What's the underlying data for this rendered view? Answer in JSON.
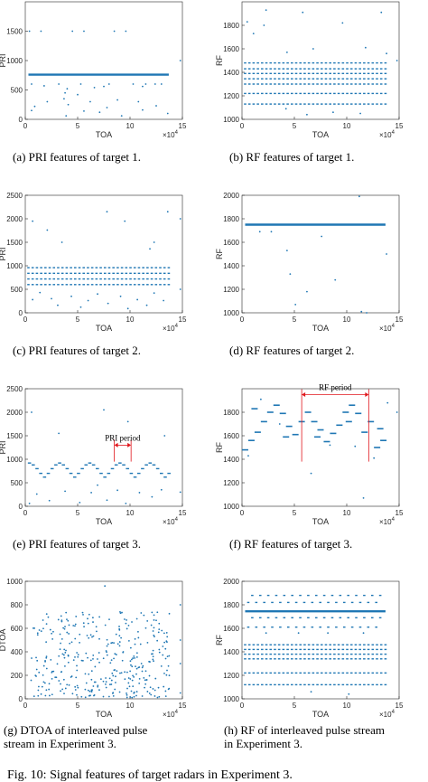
{
  "figure_caption": "Fig. 10: Signal features of target radars in Experiment 3.",
  "colors": {
    "points": "#1f77b4",
    "axes": "#262626",
    "annotation": "#e0151b"
  },
  "panels": [
    {
      "caption": [
        "(a) PRI features of target 1."
      ]
    },
    {
      "caption": [
        "(b) RF features of target 1."
      ]
    },
    {
      "caption": [
        "(c) PRI features of target 2."
      ]
    },
    {
      "caption": [
        "(d) RF features of target 2."
      ]
    },
    {
      "caption": [
        "(e) PRI features of target 3."
      ],
      "annotation": "PRI period"
    },
    {
      "caption": [
        "(f) RF features of target 3."
      ],
      "annotation": "RF period"
    },
    {
      "caption": [
        "(g) DTOA of interleaved pulse",
        "stream in Experiment 3."
      ]
    },
    {
      "caption": [
        "(h) RF of interleaved pulse stream",
        "in Experiment 3."
      ]
    }
  ],
  "chart_data": [
    {
      "type": "scatter",
      "xlabel": "TOA",
      "ylabel": "PRI",
      "x_exponent": "×10^4",
      "xlim": [
        0,
        15
      ],
      "ylim": [
        0,
        2000
      ],
      "yticks": [
        0,
        500,
        1000,
        1500
      ],
      "xticks": [
        0,
        5,
        10,
        15
      ],
      "series": [
        {
          "dense_band": {
            "x": [
              0.3,
              13.7
            ],
            "y": 760
          },
          "points": [
            [
              0.4,
              1500
            ],
            [
              1.5,
              1500
            ],
            [
              4.5,
              1500
            ],
            [
              5.6,
              1500
            ],
            [
              8.5,
              1500
            ],
            [
              9.6,
              1500
            ],
            [
              0.6,
              150
            ],
            [
              0.9,
              220
            ],
            [
              2.1,
              300
            ],
            [
              3.7,
              350
            ],
            [
              3.9,
              60
            ],
            [
              4.1,
              250
            ],
            [
              5.0,
              420
            ],
            [
              5.6,
              140
            ],
            [
              6.2,
              300
            ],
            [
              7.1,
              120
            ],
            [
              7.8,
              200
            ],
            [
              8.8,
              330
            ],
            [
              9.2,
              60
            ],
            [
              10.8,
              300
            ],
            [
              11.2,
              160
            ],
            [
              12.5,
              230
            ],
            [
              13.6,
              100
            ],
            [
              14.8,
              1000
            ],
            [
              0.6,
              600
            ],
            [
              1.8,
              570
            ],
            [
              3.2,
              600
            ],
            [
              3.8,
              450
            ],
            [
              4.0,
              520
            ],
            [
              5.3,
              600
            ],
            [
              6.6,
              540
            ],
            [
              7.5,
              560
            ],
            [
              8.0,
              600
            ],
            [
              10.3,
              600
            ],
            [
              11.2,
              560
            ],
            [
              11.5,
              600
            ],
            [
              12.4,
              600
            ],
            [
              13.0,
              600
            ]
          ]
        }
      ]
    },
    {
      "type": "scatter",
      "xlabel": "TOA",
      "ylabel": "RF",
      "x_exponent": "×10^4",
      "xlim": [
        0,
        15
      ],
      "ylim": [
        1000,
        2000
      ],
      "yticks": [
        1000,
        1200,
        1400,
        1600,
        1800
      ],
      "xticks": [
        0,
        5,
        10,
        15
      ],
      "series": [
        {
          "dash_rows": [
            {
              "y": 1480,
              "x": [
                0.3,
                13.7
              ],
              "dy": 0
            },
            {
              "y": 1430,
              "x": [
                0.3,
                13.7
              ],
              "dy": 0
            },
            {
              "y": 1390,
              "x": [
                0.3,
                13.7
              ],
              "dy": 0
            },
            {
              "y": 1345,
              "x": [
                0.3,
                13.7
              ],
              "dy": 0
            },
            {
              "y": 1300,
              "x": [
                0.3,
                13.7
              ],
              "dy": 0
            },
            {
              "y": 1220,
              "x": [
                0.3,
                13.7
              ],
              "dy": 0
            },
            {
              "y": 1130,
              "x": [
                0.3,
                13.7
              ],
              "dy": 0
            }
          ],
          "points": [
            [
              2.3,
              1930
            ],
            [
              0.5,
              1830
            ],
            [
              1.1,
              1730
            ],
            [
              2.1,
              1800
            ],
            [
              5.8,
              1910
            ],
            [
              13.3,
              1910
            ],
            [
              4.3,
              1570
            ],
            [
              6.8,
              1600
            ],
            [
              9.6,
              1820
            ],
            [
              11.8,
              1610
            ],
            [
              13.8,
              1560
            ],
            [
              8.7,
              1060
            ],
            [
              6.2,
              1040
            ],
            [
              11.3,
              1050
            ],
            [
              4.2,
              1090
            ],
            [
              14.8,
              1500
            ]
          ]
        }
      ]
    },
    {
      "type": "scatter",
      "xlabel": "TOA",
      "ylabel": "PRI",
      "x_exponent": "×10^4",
      "xlim": [
        0,
        15
      ],
      "ylim": [
        0,
        2500
      ],
      "yticks": [
        0,
        500,
        1000,
        1500,
        2000,
        2500
      ],
      "xticks": [
        0,
        5,
        10,
        15
      ],
      "series": [
        {
          "dash_rows": [
            {
              "y": 960,
              "x": [
                0.3,
                13.7
              ],
              "dy": 0
            },
            {
              "y": 840,
              "x": [
                0.3,
                13.7
              ],
              "dy": 0
            },
            {
              "y": 720,
              "x": [
                0.3,
                13.7
              ],
              "dy": 0
            },
            {
              "y": 600,
              "x": [
                0.3,
                13.7
              ],
              "dy": 0
            }
          ],
          "points": [
            [
              0.7,
              1950
            ],
            [
              2.1,
              1760
            ],
            [
              3.5,
              1500
            ],
            [
              7.8,
              2150
            ],
            [
              9.5,
              1950
            ],
            [
              12.3,
              1500
            ],
            [
              13.6,
              2150
            ],
            [
              14.8,
              2000
            ],
            [
              11.9,
              1360
            ],
            [
              0.7,
              280
            ],
            [
              1.4,
              430
            ],
            [
              2.5,
              300
            ],
            [
              3.1,
              160
            ],
            [
              4.4,
              350
            ],
            [
              5.3,
              120
            ],
            [
              6.0,
              260
            ],
            [
              6.9,
              400
            ],
            [
              7.9,
              200
            ],
            [
              9.1,
              350
            ],
            [
              9.8,
              90
            ],
            [
              10.7,
              280
            ],
            [
              11.6,
              160
            ],
            [
              12.3,
              420
            ],
            [
              13.2,
              260
            ],
            [
              14.8,
              500
            ]
          ]
        }
      ]
    },
    {
      "type": "scatter",
      "xlabel": "TOA",
      "ylabel": "RF",
      "x_exponent": "×10^4",
      "xlim": [
        0,
        15
      ],
      "ylim": [
        1000,
        2000
      ],
      "yticks": [
        1000,
        1200,
        1400,
        1600,
        1800,
        2000
      ],
      "xticks": [
        0,
        5,
        10,
        15
      ],
      "series": [
        {
          "dense_band": {
            "x": [
              0.3,
              13.7
            ],
            "y": 1750
          },
          "points": [
            [
              1.7,
              1690
            ],
            [
              2.8,
              1690
            ],
            [
              11.2,
              1990
            ],
            [
              4.3,
              1530
            ],
            [
              4.6,
              1330
            ],
            [
              6.2,
              1180
            ],
            [
              5.1,
              1070
            ],
            [
              11.4,
              1010
            ],
            [
              11.9,
              1000
            ],
            [
              13.8,
              1500
            ],
            [
              7.6,
              1650
            ],
            [
              8.9,
              1280
            ]
          ]
        }
      ]
    },
    {
      "type": "scatter",
      "xlabel": "TOA",
      "ylabel": "PRI",
      "x_exponent": "×10^4",
      "xlim": [
        0,
        15
      ],
      "ylim": [
        0,
        2500
      ],
      "yticks": [
        0,
        500,
        1000,
        1500,
        2000,
        2500
      ],
      "xticks": [
        0,
        5,
        10,
        15
      ],
      "annotation_span": {
        "x": [
          8.5,
          10.1
        ],
        "y": 1300
      },
      "series": [
        {
          "pattern_segments": {
            "x_start": 0.4,
            "x_end": 13.9,
            "step": 0.36,
            "levels": [
              920,
              880,
              800,
              700,
              620,
              700,
              800,
              880
            ]
          },
          "points": [
            [
              0.6,
              2000
            ],
            [
              3.2,
              1550
            ],
            [
              7.5,
              2050
            ],
            [
              9.8,
              1800
            ],
            [
              13.3,
              1500
            ],
            [
              0.4,
              60
            ],
            [
              1.1,
              260
            ],
            [
              2.3,
              120
            ],
            [
              3.8,
              320
            ],
            [
              5.2,
              80
            ],
            [
              6.3,
              290
            ],
            [
              6.9,
              450
            ],
            [
              7.8,
              130
            ],
            [
              8.8,
              340
            ],
            [
              9.6,
              60
            ],
            [
              10.9,
              290
            ],
            [
              12.1,
              200
            ],
            [
              13.0,
              350
            ],
            [
              14.8,
              300
            ]
          ]
        }
      ]
    },
    {
      "type": "scatter",
      "xlabel": "TOA",
      "ylabel": "RF",
      "x_exponent": "×10^4",
      "xlim": [
        0,
        15
      ],
      "ylim": [
        1000,
        2000
      ],
      "yticks": [
        1000,
        1200,
        1400,
        1600,
        1800
      ],
      "xticks": [
        0,
        5,
        10,
        15
      ],
      "annotation_span": {
        "x": [
          5.7,
          12.1
        ],
        "y": 1950
      },
      "series": [
        {
          "segments": [
            [
              0.3,
              1480
            ],
            [
              0.9,
              1560
            ],
            [
              1.5,
              1630
            ],
            [
              2.1,
              1720
            ],
            [
              2.7,
              1800
            ],
            [
              3.3,
              1860
            ],
            [
              3.9,
              1790
            ],
            [
              4.5,
              1680
            ],
            [
              5.1,
              1610
            ],
            [
              5.7,
              1720
            ],
            [
              6.3,
              1800
            ],
            [
              6.9,
              1720
            ],
            [
              7.5,
              1650
            ],
            [
              8.1,
              1550
            ],
            [
              8.7,
              1620
            ],
            [
              9.3,
              1690
            ],
            [
              9.9,
              1800
            ],
            [
              10.5,
              1860
            ],
            [
              11.1,
              1790
            ],
            [
              11.7,
              1630
            ],
            [
              12.3,
              1720
            ],
            [
              12.9,
              1500
            ],
            [
              13.5,
              1560
            ],
            [
              1.2,
              1830
            ],
            [
              4.2,
              1590
            ],
            [
              7.2,
              1590
            ],
            [
              10.2,
              1720
            ],
            [
              13.2,
              1660
            ]
          ],
          "points": [
            [
              0.6,
              1430
            ],
            [
              1.8,
              1910
            ],
            [
              3.6,
              1700
            ],
            [
              6.6,
              1280
            ],
            [
              8.4,
              1520
            ],
            [
              10.8,
              1510
            ],
            [
              11.6,
              1070
            ],
            [
              12.6,
              1410
            ],
            [
              13.9,
              1880
            ],
            [
              14.8,
              1800
            ]
          ]
        }
      ]
    },
    {
      "type": "scatter",
      "xlabel": "TOA",
      "ylabel": "DTOA",
      "x_exponent": "×10^4",
      "xlim": [
        0,
        15
      ],
      "ylim": [
        0,
        1000
      ],
      "yticks": [
        0,
        200,
        400,
        600,
        800,
        1000
      ],
      "xticks": [
        0,
        5,
        10,
        15
      ],
      "series": [
        {
          "random_cloud": {
            "n": 360,
            "seed": 42,
            "x": [
              0.3,
              13.8
            ],
            "y": [
              10,
              740
            ]
          },
          "points": [
            [
              7.6,
              960
            ],
            [
              14.8,
              800
            ],
            [
              14.8,
              500
            ],
            [
              14.8,
              300
            ],
            [
              14.8,
              50
            ]
          ]
        }
      ]
    },
    {
      "type": "scatter",
      "xlabel": "TOA",
      "ylabel": "RF",
      "x_exponent": "×10^4",
      "xlim": [
        0,
        15
      ],
      "ylim": [
        1000,
        2000
      ],
      "yticks": [
        1000,
        1200,
        1400,
        1600,
        1800,
        2000
      ],
      "xticks": [
        0,
        5,
        10,
        15
      ],
      "series": [
        {
          "dense_band": {
            "x": [
              0.3,
              13.7
            ],
            "y": 1745
          },
          "dash_rows": [
            {
              "y": 1850,
              "x": [
                0.6,
                13.2
              ],
              "dy": 30
            },
            {
              "y": 1650,
              "x": [
                0.6,
                13.2
              ],
              "dy": 40
            },
            {
              "y": 1460,
              "x": [
                0.3,
                13.7
              ],
              "dy": 0
            },
            {
              "y": 1420,
              "x": [
                0.3,
                13.7
              ],
              "dy": 0
            },
            {
              "y": 1380,
              "x": [
                0.3,
                13.7
              ],
              "dy": 0
            },
            {
              "y": 1340,
              "x": [
                0.3,
                13.7
              ],
              "dy": 0
            },
            {
              "y": 1220,
              "x": [
                0.3,
                13.7
              ],
              "dy": 0
            },
            {
              "y": 1120,
              "x": [
                0.3,
                13.7
              ],
              "dy": 0
            }
          ],
          "points": [
            [
              2.3,
              1560
            ],
            [
              5.4,
              1560
            ],
            [
              8.2,
              1560
            ],
            [
              11.6,
              1560
            ],
            [
              6.6,
              1060
            ],
            [
              10.2,
              1040
            ]
          ]
        }
      ]
    }
  ]
}
